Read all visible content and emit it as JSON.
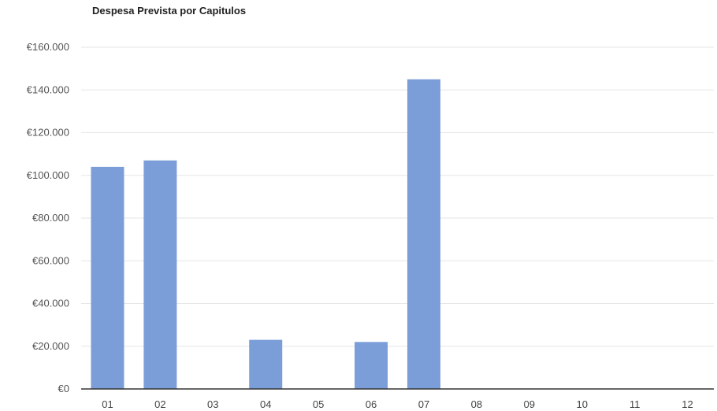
{
  "chart_data": {
    "type": "bar",
    "title": "Despesa Prevista por Capitulos",
    "xlabel": "",
    "ylabel": "",
    "categories": [
      "01",
      "02",
      "03",
      "04",
      "05",
      "06",
      "07",
      "08",
      "09",
      "10",
      "11",
      "12"
    ],
    "values": [
      104000,
      107000,
      0,
      23000,
      0,
      22000,
      145000,
      0,
      0,
      0,
      0,
      0
    ],
    "ylim": [
      0,
      160000
    ],
    "yticks": [
      0,
      20000,
      40000,
      60000,
      80000,
      100000,
      120000,
      140000,
      160000
    ],
    "ytick_labels": [
      "€0",
      "€20.000",
      "€40.000",
      "€60.000",
      "€80.000",
      "€100.000",
      "€120.000",
      "€140.000",
      "€160.000"
    ],
    "bar_color": "#7b9ed9",
    "grid": true,
    "legend": "none"
  }
}
